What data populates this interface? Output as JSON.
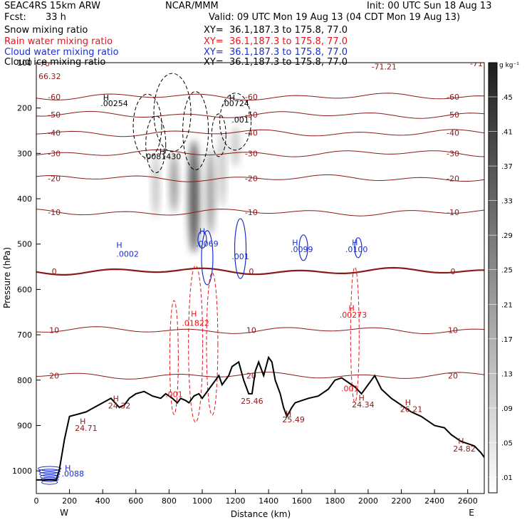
{
  "header": {
    "model": "SEAC4RS 15km ARW",
    "forecast_label": "Fcst:",
    "forecast_value": "33 h",
    "center": "NCAR/MMM",
    "init": "Init: 00 UTC Sun 18 Aug 13",
    "valid": "Valid: 09 UTC Mon 19 Aug 13 (04 CDT Mon 19 Aug 13)"
  },
  "fields": [
    {
      "label": "Snow mixing ratio",
      "xy": "XY=  36.1,187.3 to 175.8, 77.0",
      "color": "#000000"
    },
    {
      "label": "Rain water mixing ratio",
      "xy": "XY=  36.1,187.3 to 175.8, 77.0",
      "color": "#e8141a"
    },
    {
      "label": "Cloud water mixing ratio",
      "xy": "XY=  36.1,187.3 to 175.8, 77.0",
      "color": "#1a2fd0"
    },
    {
      "label": "Cloud ice mixing ratio",
      "xy": "XY=  36.1,187.3 to 175.8, 77.0",
      "color": "#000000"
    }
  ],
  "chart_data": {
    "type": "cross-section",
    "xlabel": "Distance (km)",
    "ylabel": "Pressure (hPa)",
    "xlim": [
      0,
      2700
    ],
    "ylim": [
      1050,
      100
    ],
    "x_ticks": [
      0,
      200,
      400,
      600,
      800,
      1000,
      1200,
      1400,
      1600,
      1800,
      2000,
      2200,
      2400,
      2600
    ],
    "y_ticks": [
      200,
      300,
      400,
      500,
      600,
      700,
      800,
      900,
      1000
    ],
    "y_top_tick_label": "100",
    "left_end": "W",
    "right_end": "E",
    "colorbar": {
      "unit": "g kg⁻¹",
      "ticks": [
        ".45",
        ".41",
        ".37",
        ".33",
        ".29",
        ".25",
        ".21",
        ".17",
        ".13",
        ".09",
        ".05",
        ".01"
      ]
    },
    "temperature_contour_labels": [
      "-70",
      "-71",
      "-71.21",
      "66.32",
      "-60",
      "-50",
      "-40",
      "-30",
      "-20",
      "-10",
      "0",
      "10",
      "20",
      "H"
    ],
    "terrain_profile": [
      [
        0,
        1020
      ],
      [
        120,
        1020
      ],
      [
        140,
        995
      ],
      [
        170,
        930
      ],
      [
        200,
        880
      ],
      [
        250,
        875
      ],
      [
        300,
        870
      ],
      [
        350,
        860
      ],
      [
        400,
        850
      ],
      [
        450,
        840
      ],
      [
        500,
        860
      ],
      [
        530,
        855
      ],
      [
        560,
        840
      ],
      [
        600,
        830
      ],
      [
        650,
        825
      ],
      [
        700,
        835
      ],
      [
        750,
        840
      ],
      [
        780,
        830
      ],
      [
        820,
        840
      ],
      [
        850,
        850
      ],
      [
        870,
        840
      ],
      [
        900,
        845
      ],
      [
        920,
        850
      ],
      [
        950,
        835
      ],
      [
        980,
        830
      ],
      [
        1000,
        840
      ],
      [
        1040,
        820
      ],
      [
        1080,
        800
      ],
      [
        1100,
        790
      ],
      [
        1120,
        810
      ],
      [
        1160,
        790
      ],
      [
        1180,
        770
      ],
      [
        1220,
        760
      ],
      [
        1250,
        800
      ],
      [
        1280,
        830
      ],
      [
        1300,
        830
      ],
      [
        1320,
        780
      ],
      [
        1340,
        760
      ],
      [
        1370,
        790
      ],
      [
        1400,
        750
      ],
      [
        1420,
        760
      ],
      [
        1440,
        800
      ],
      [
        1470,
        830
      ],
      [
        1490,
        860
      ],
      [
        1510,
        880
      ],
      [
        1540,
        860
      ],
      [
        1560,
        850
      ],
      [
        1600,
        845
      ],
      [
        1640,
        840
      ],
      [
        1700,
        835
      ],
      [
        1760,
        820
      ],
      [
        1800,
        800
      ],
      [
        1840,
        795
      ],
      [
        1880,
        805
      ],
      [
        1920,
        815
      ],
      [
        1960,
        830
      ],
      [
        2000,
        810
      ],
      [
        2040,
        790
      ],
      [
        2080,
        820
      ],
      [
        2140,
        840
      ],
      [
        2200,
        855
      ],
      [
        2260,
        870
      ],
      [
        2320,
        880
      ],
      [
        2400,
        900
      ],
      [
        2460,
        905
      ],
      [
        2500,
        920
      ],
      [
        2560,
        935
      ],
      [
        2600,
        940
      ],
      [
        2640,
        945
      ],
      [
        2680,
        960
      ],
      [
        2700,
        970
      ]
    ],
    "isotherms": [
      {
        "label": "-60",
        "p": 175
      },
      {
        "label": "-50",
        "p": 215
      },
      {
        "label": "-40",
        "p": 255
      },
      {
        "label": "-30",
        "p": 300
      },
      {
        "label": "-20",
        "p": 355
      },
      {
        "label": "-10",
        "p": 430
      },
      {
        "label": "0",
        "p": 560
      },
      {
        "label": "10",
        "p": 690
      },
      {
        "label": "20",
        "p": 790
      }
    ],
    "maxima_labels": [
      {
        "text": "H",
        "x": 420,
        "p": 183,
        "color": "#000000"
      },
      {
        "text": ".00254",
        "x": 470,
        "p": 196,
        "color": "#000000"
      },
      {
        "text": "H",
        "x": 1180,
        "p": 183,
        "color": "#000000"
      },
      {
        "text": ".00724",
        "x": 1200,
        "p": 196,
        "color": "#000000"
      },
      {
        "text": ".001",
        "x": 1230,
        "p": 232,
        "color": "#000000"
      },
      {
        "text": ".0081430",
        "x": 760,
        "p": 313,
        "color": "#000000"
      },
      {
        "text": "H",
        "x": 760,
        "p": 302,
        "color": "#000000"
      },
      {
        "text": "H",
        "x": 500,
        "p": 508,
        "color": "#1a2fd0"
      },
      {
        "text": ".0002",
        "x": 550,
        "p": 528,
        "color": "#1a2fd0"
      },
      {
        "text": "H",
        "x": 1000,
        "p": 478,
        "color": "#1a2fd0"
      },
      {
        "text": ".0069",
        "x": 1030,
        "p": 505,
        "color": "#1a2fd0"
      },
      {
        "text": ".001",
        "x": 1230,
        "p": 533,
        "color": "#1a2fd0"
      },
      {
        "text": "H",
        "x": 1560,
        "p": 503,
        "color": "#1a2fd0"
      },
      {
        "text": ".0099",
        "x": 1600,
        "p": 518,
        "color": "#1a2fd0"
      },
      {
        "text": "H",
        "x": 1920,
        "p": 503,
        "color": "#1a2fd0"
      },
      {
        "text": ".0100",
        "x": 1930,
        "p": 518,
        "color": "#1a2fd0"
      },
      {
        "text": "H",
        "x": 950,
        "p": 660,
        "color": "#e8141a"
      },
      {
        "text": ".01822",
        "x": 960,
        "p": 680,
        "color": "#e8141a"
      },
      {
        "text": "H",
        "x": 1900,
        "p": 647,
        "color": "#e8141a"
      },
      {
        "text": ".00273",
        "x": 1910,
        "p": 662,
        "color": "#e8141a"
      },
      {
        "text": ".001",
        "x": 830,
        "p": 837,
        "color": "#e8141a"
      },
      {
        "text": ".001",
        "x": 1890,
        "p": 825,
        "color": "#e8141a"
      },
      {
        "text": "H",
        "x": 480,
        "p": 847,
        "color": "#8b1a1a"
      },
      {
        "text": "24.32",
        "x": 500,
        "p": 862,
        "color": "#8b1a1a"
      },
      {
        "text": "H",
        "x": 280,
        "p": 897,
        "color": "#8b1a1a"
      },
      {
        "text": "24.71",
        "x": 300,
        "p": 912,
        "color": "#8b1a1a"
      },
      {
        "text": "25.46",
        "x": 1300,
        "p": 852,
        "color": "#8b1a1a"
      },
      {
        "text": "H",
        "x": 1520,
        "p": 880,
        "color": "#8b1a1a"
      },
      {
        "text": "25.49",
        "x": 1550,
        "p": 893,
        "color": "#8b1a1a"
      },
      {
        "text": "H",
        "x": 1960,
        "p": 845,
        "color": "#8b1a1a"
      },
      {
        "text": "24.34",
        "x": 1970,
        "p": 860,
        "color": "#8b1a1a"
      },
      {
        "text": "H",
        "x": 2240,
        "p": 855,
        "color": "#8b1a1a"
      },
      {
        "text": "26.21",
        "x": 2260,
        "p": 870,
        "color": "#8b1a1a"
      },
      {
        "text": "H",
        "x": 2560,
        "p": 940,
        "color": "#8b1a1a"
      },
      {
        "text": "24.82",
        "x": 2580,
        "p": 957,
        "color": "#8b1a1a"
      },
      {
        "text": "H",
        "x": 190,
        "p": 1000,
        "color": "#1a2fd0"
      },
      {
        "text": ".0088",
        "x": 220,
        "p": 1012,
        "color": "#1a2fd0"
      }
    ]
  }
}
